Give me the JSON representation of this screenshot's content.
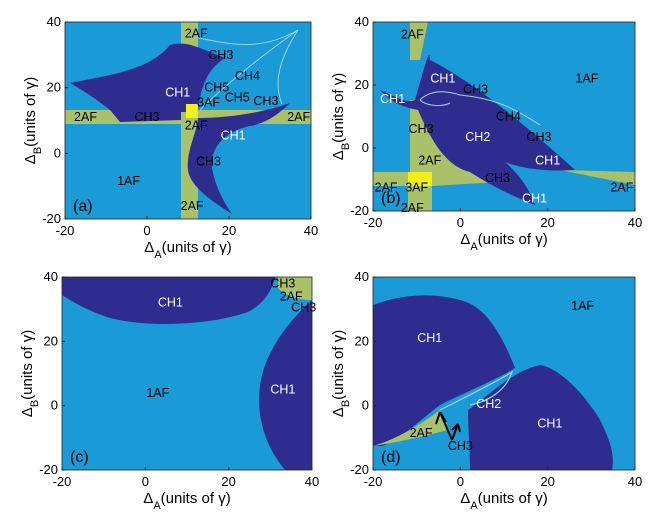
{
  "colors": {
    "bg": "#1a9ad6",
    "ch1": "#2f2c8f",
    "af2": "#a9c26a",
    "af3": "#f4ee1d",
    "curve": "#9fd4e6"
  },
  "chart_data": [
    {
      "id": "a",
      "type": "phase-diagram",
      "panel_label": "(a)",
      "xlabel": "Δ_A(units of γ)",
      "ylabel": "Δ_B(units of γ)",
      "xlim": [
        -20,
        40
      ],
      "ylim": [
        -20,
        40
      ],
      "xticks": [
        "-20",
        "0",
        "20",
        "40"
      ],
      "yticks": [
        "-20",
        "0",
        "20",
        "40"
      ],
      "region_labels": [
        {
          "text": "2AF",
          "x": 12,
          "y": 36.5,
          "color": "#000"
        },
        {
          "text": "CH3",
          "x": 18,
          "y": 30,
          "color": "#000"
        },
        {
          "text": "CH4",
          "x": 24.5,
          "y": 23.5,
          "color": "#000"
        },
        {
          "text": "CH1",
          "x": 7.5,
          "y": 18.5,
          "color": "#fff"
        },
        {
          "text": "CH5",
          "x": 17,
          "y": 20,
          "color": "#000"
        },
        {
          "text": "CH5",
          "x": 22,
          "y": 17,
          "color": "#000"
        },
        {
          "text": "3AF",
          "x": 15,
          "y": 15.5,
          "color": "#000"
        },
        {
          "text": "CH3",
          "x": 29,
          "y": 16,
          "color": "#000"
        },
        {
          "text": "2AF",
          "x": -15,
          "y": 11,
          "color": "#000"
        },
        {
          "text": "CH3",
          "x": 0,
          "y": 11,
          "color": "#000"
        },
        {
          "text": "2AF",
          "x": 12,
          "y": 8.5,
          "color": "#000"
        },
        {
          "text": "2AF",
          "x": 37,
          "y": 11,
          "color": "#000"
        },
        {
          "text": "CH1",
          "x": 21,
          "y": 5.5,
          "color": "#fff"
        },
        {
          "text": "CH3",
          "x": 15,
          "y": -2.5,
          "color": "#000"
        },
        {
          "text": "1AF",
          "x": -4.5,
          "y": -8.5,
          "color": "#000"
        },
        {
          "text": "2AF",
          "x": 11,
          "y": -16,
          "color": "#000"
        }
      ]
    },
    {
      "id": "b",
      "type": "phase-diagram",
      "panel_label": "(b)",
      "xlabel": "Δ_A(units of γ)",
      "ylabel": "Δ_B(units of γ)",
      "xlim": [
        -20,
        40
      ],
      "ylim": [
        -20,
        40
      ],
      "xticks": [
        "-20",
        "0",
        "20",
        "40"
      ],
      "yticks": [
        "-20",
        "0",
        "20",
        "40"
      ],
      "region_labels": [
        {
          "text": "2AF",
          "x": -11,
          "y": 36,
          "color": "#000"
        },
        {
          "text": "1AF",
          "x": 29,
          "y": 22,
          "color": "#000"
        },
        {
          "text": "CH1",
          "x": -4,
          "y": 22,
          "color": "#fff"
        },
        {
          "text": "CH3",
          "x": 3.5,
          "y": 18.5,
          "color": "#000"
        },
        {
          "text": "CH1",
          "x": -15.5,
          "y": 15.5,
          "color": "#fff"
        },
        {
          "text": "CH4",
          "x": 11,
          "y": 10,
          "color": "#000"
        },
        {
          "text": "CH3",
          "x": -9,
          "y": 6,
          "color": "#000"
        },
        {
          "text": "CH2",
          "x": 4,
          "y": 3.5,
          "color": "#fff"
        },
        {
          "text": "CH3",
          "x": 18,
          "y": 3.5,
          "color": "#000"
        },
        {
          "text": "2AF",
          "x": -7,
          "y": -4,
          "color": "#000"
        },
        {
          "text": "CH1",
          "x": 20,
          "y": -4,
          "color": "#fff"
        },
        {
          "text": "CH3",
          "x": 8.5,
          "y": -9.5,
          "color": "#000"
        },
        {
          "text": "2AF",
          "x": -17,
          "y": -12.5,
          "color": "#000"
        },
        {
          "text": "3AF",
          "x": -10,
          "y": -12.5,
          "color": "#000"
        },
        {
          "text": "2AF",
          "x": 37,
          "y": -12.5,
          "color": "#000"
        },
        {
          "text": "CH1",
          "x": 17,
          "y": -16,
          "color": "#fff"
        },
        {
          "text": "2AF",
          "x": -11,
          "y": -19,
          "color": "#000"
        }
      ]
    },
    {
      "id": "c",
      "type": "phase-diagram",
      "panel_label": "(c)",
      "xlabel": "Δ_A(units of γ)",
      "ylabel": "Δ_B(units of γ)",
      "xlim": [
        -20,
        40
      ],
      "ylim": [
        -20,
        40
      ],
      "xticks": [
        "-20",
        "0",
        "20",
        "40"
      ],
      "yticks": [
        "-20",
        "0",
        "20",
        "40"
      ],
      "region_labels": [
        {
          "text": "CH3",
          "x": 33,
          "y": 38,
          "color": "#000"
        },
        {
          "text": "CH1",
          "x": 6,
          "y": 32,
          "color": "#fff"
        },
        {
          "text": "2AF",
          "x": 35,
          "y": 34,
          "color": "#000"
        },
        {
          "text": "CH3",
          "x": 38,
          "y": 30.5,
          "color": "#000"
        },
        {
          "text": "1AF",
          "x": 3,
          "y": 4,
          "color": "#000"
        },
        {
          "text": "CH1",
          "x": 33,
          "y": 5,
          "color": "#fff"
        }
      ]
    },
    {
      "id": "d",
      "type": "phase-diagram",
      "panel_label": "(d)",
      "xlabel": "Δ_A(units of γ)",
      "ylabel": "Δ_B(units of γ)",
      "xlim": [
        -20,
        40
      ],
      "ylim": [
        -20,
        40
      ],
      "xticks": [
        "-20",
        "0",
        "20",
        "40"
      ],
      "yticks": [
        "-20",
        "0",
        "20",
        "40"
      ],
      "region_labels": [
        {
          "text": "1AF",
          "x": 28,
          "y": 31,
          "color": "#000"
        },
        {
          "text": "CH1",
          "x": -7,
          "y": 21,
          "color": "#fff"
        },
        {
          "text": "CH2",
          "x": 6.5,
          "y": 0.5,
          "color": "#fff"
        },
        {
          "text": "CH1",
          "x": 20.5,
          "y": -5.5,
          "color": "#fff"
        },
        {
          "text": "2AF",
          "x": -9,
          "y": -8.5,
          "color": "#000"
        },
        {
          "text": "CH3",
          "x": 0,
          "y": -12.5,
          "color": "#000"
        }
      ]
    }
  ]
}
